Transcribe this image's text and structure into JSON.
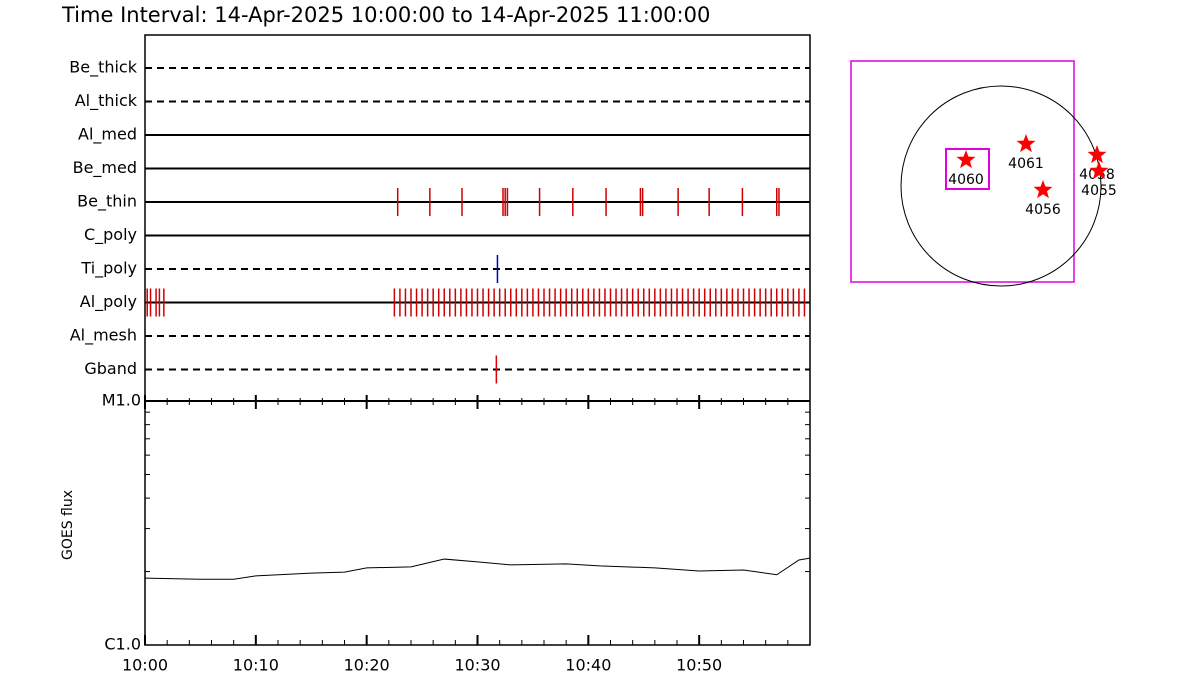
{
  "title": "Time Interval: 14-Apr-2025 10:00:00 to 14-Apr-2025 11:00:00",
  "chart_data": [
    {
      "type": "timeline",
      "xlim": [
        0,
        60
      ],
      "rows": [
        {
          "name": "Be_thick",
          "line": "dashed",
          "color": "#d00000",
          "events": []
        },
        {
          "name": "Al_thick",
          "line": "dashed",
          "color": "#d00000",
          "events": []
        },
        {
          "name": "Al_med",
          "line": "solid",
          "color": "#d00000",
          "events": []
        },
        {
          "name": "Be_med",
          "line": "solid",
          "color": "#d00000",
          "events": []
        },
        {
          "name": "Be_thin",
          "line": "solid",
          "color": "#d00000",
          "events": [
            22.8,
            25.7,
            28.6,
            32.3,
            32.5,
            32.7,
            35.6,
            38.6,
            41.6,
            44.7,
            44.9,
            48.1,
            50.9,
            53.9,
            57.0,
            57.2
          ]
        },
        {
          "name": "C_poly",
          "line": "solid",
          "color": "#d00000",
          "events": []
        },
        {
          "name": "Ti_poly",
          "line": "dashed",
          "color": "#0000c0",
          "events": [
            31.8
          ]
        },
        {
          "name": "Al_poly",
          "line": "solid",
          "color": "#d00000",
          "events": [
            0.2,
            0.5,
            1.0,
            1.3,
            1.7,
            22.5,
            23,
            23.5,
            24,
            24.5,
            25,
            25.5,
            26,
            26.5,
            27,
            27.5,
            28,
            28.5,
            29,
            29.5,
            30,
            30.5,
            31,
            31.5,
            32,
            32.5,
            33,
            33.5,
            34,
            34.5,
            35,
            35.5,
            36,
            36.5,
            37,
            37.5,
            38,
            38.5,
            39,
            39.5,
            40,
            40.5,
            41,
            41.5,
            42,
            42.5,
            43,
            43.5,
            44,
            44.5,
            45,
            45.5,
            46,
            46.5,
            47,
            47.5,
            48,
            48.5,
            49,
            49.5,
            50,
            50.5,
            51,
            51.5,
            52,
            52.5,
            53,
            53.5,
            54,
            54.5,
            55,
            55.5,
            56,
            56.5,
            57,
            57.5,
            58,
            58.5,
            59,
            59.5
          ]
        },
        {
          "name": "Al_mesh",
          "line": "dashed",
          "color": "#d00000",
          "events": []
        },
        {
          "name": "Gband",
          "line": "dashed",
          "color": "#e00000",
          "events": [
            31.7
          ]
        }
      ]
    },
    {
      "type": "line",
      "ylabel": "GOES flux",
      "log_y": true,
      "color": "#000000",
      "x": [
        0,
        5,
        8,
        10,
        15,
        18,
        20,
        24,
        27,
        30,
        33,
        38,
        41,
        46,
        50,
        54,
        57,
        59,
        60
      ],
      "values": [
        1.88e-06,
        1.86e-06,
        1.86e-06,
        1.92e-06,
        1.97e-06,
        1.99e-06,
        2.07e-06,
        2.09e-06,
        2.25e-06,
        2.19e-06,
        2.13e-06,
        2.15e-06,
        2.11e-06,
        2.07e-06,
        2.01e-06,
        2.03e-06,
        1.94e-06,
        2.23e-06,
        2.27e-06
      ],
      "xlim": [
        0,
        60
      ],
      "xticks": [
        {
          "value": 0,
          "label": "10:00"
        },
        {
          "value": 10,
          "label": "10:10"
        },
        {
          "value": 20,
          "label": "10:20"
        },
        {
          "value": 30,
          "label": "10:30"
        },
        {
          "value": 40,
          "label": "10:40"
        },
        {
          "value": 50,
          "label": "10:50"
        }
      ],
      "ylim": [
        1e-06,
        1e-05
      ],
      "yticks": [
        {
          "value": 1e-05,
          "label": "M1.0"
        },
        {
          "value": 1e-06,
          "label": "C1.0"
        }
      ]
    }
  ],
  "context_map": {
    "regions": [
      "4060",
      "4061",
      "4056",
      "4058",
      "4055"
    ]
  }
}
